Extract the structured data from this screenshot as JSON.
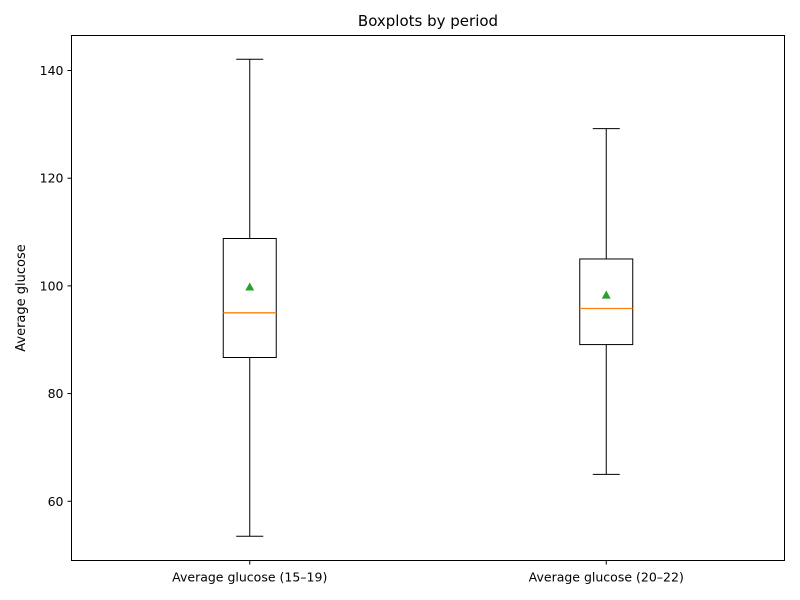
{
  "chart_data": {
    "type": "boxplot",
    "title": "Boxplots by period",
    "xlabel": "",
    "ylabel": "Average glucose",
    "ylim": [
      49,
      146.5
    ],
    "yticks": [
      60,
      80,
      100,
      120,
      140
    ],
    "categories": [
      "Average glucose (15–19)",
      "Average glucose (20–22)"
    ],
    "boxes": [
      {
        "whisker_low": 53.5,
        "q1": 86.7,
        "median": 95.0,
        "q3": 108.8,
        "whisker_high": 142.1,
        "mean": 99.8
      },
      {
        "whisker_low": 65.0,
        "q1": 89.1,
        "median": 95.8,
        "q3": 105.0,
        "whisker_high": 129.2,
        "mean": 98.3
      }
    ],
    "grid": false,
    "colors": {
      "box": "#000000",
      "median": "#ff7f0e",
      "mean": "#2ca02c"
    }
  }
}
